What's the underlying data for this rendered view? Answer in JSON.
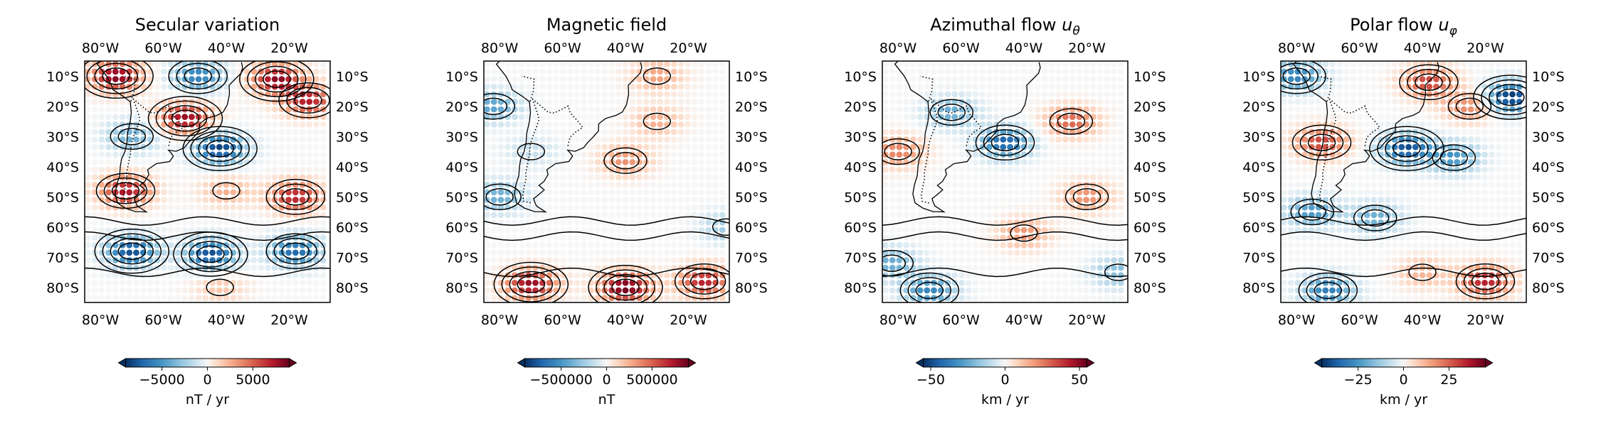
{
  "chart_data": [
    {
      "type": "heatmap",
      "title": "Secular variation",
      "title_var": "",
      "x_ticks": [
        "80°W",
        "60°W",
        "40°W",
        "20°W"
      ],
      "x_tick_values": [
        -80,
        -60,
        -40,
        -20
      ],
      "y_ticks": [
        "10°S",
        "20°S",
        "30°S",
        "40°S",
        "50°S",
        "60°S",
        "70°S",
        "80°S"
      ],
      "y_tick_values": [
        -10,
        -20,
        -30,
        -40,
        -50,
        -60,
        -70,
        -80
      ],
      "xlim": [
        -85,
        -7
      ],
      "ylim": [
        -85,
        -5
      ],
      "colorbar": {
        "ticks": [
          "−5000",
          "0",
          "5000"
        ],
        "tick_values": [
          -5000,
          0,
          5000
        ],
        "range": [
          -9000,
          9000
        ],
        "label": "nT / yr"
      },
      "features": [
        {
          "lon": -75,
          "lat": -10,
          "value": 8500
        },
        {
          "lon": -53,
          "lat": -24,
          "value": 8000
        },
        {
          "lon": -49,
          "lat": -10,
          "value": -6000
        },
        {
          "lon": -24,
          "lat": -11,
          "value": 8000
        },
        {
          "lon": -14,
          "lat": -18,
          "value": 7000
        },
        {
          "lon": -70,
          "lat": -30,
          "value": -4000
        },
        {
          "lon": -42,
          "lat": -34,
          "value": -8500
        },
        {
          "lon": -72,
          "lat": -48,
          "value": 7500
        },
        {
          "lon": -18,
          "lat": -50,
          "value": 7000
        },
        {
          "lon": -40,
          "lat": -48,
          "value": 2500
        },
        {
          "lon": -45,
          "lat": -69,
          "value": -8000
        },
        {
          "lon": -70,
          "lat": -68,
          "value": -8000
        },
        {
          "lon": -18,
          "lat": -68,
          "value": -7000
        },
        {
          "lon": -42,
          "lat": -80,
          "value": 1800
        }
      ]
    },
    {
      "type": "heatmap",
      "title": "Magnetic field",
      "title_var": "",
      "x_ticks": [
        "80°W",
        "60°W",
        "40°W",
        "20°W"
      ],
      "x_tick_values": [
        -80,
        -60,
        -40,
        -20
      ],
      "y_ticks": [
        "10°S",
        "20°S",
        "30°S",
        "40°S",
        "50°S",
        "60°S",
        "70°S",
        "80°S"
      ],
      "y_tick_values": [
        -10,
        -20,
        -30,
        -40,
        -50,
        -60,
        -70,
        -80
      ],
      "xlim": [
        -85,
        -7
      ],
      "ylim": [
        -85,
        -5
      ],
      "colorbar": {
        "ticks": [
          "−500000",
          "0",
          "500000"
        ],
        "tick_values": [
          -500000,
          0,
          500000
        ],
        "range": [
          -900000,
          900000
        ],
        "label": "nT"
      },
      "features": [
        {
          "lon": -82,
          "lat": -20,
          "value": -450000
        },
        {
          "lon": -80,
          "lat": -50,
          "value": -400000
        },
        {
          "lon": -70,
          "lat": -35,
          "value": -150000
        },
        {
          "lon": -8,
          "lat": -60,
          "value": -250000
        },
        {
          "lon": -40,
          "lat": -38,
          "value": 350000
        },
        {
          "lon": -30,
          "lat": -25,
          "value": 250000
        },
        {
          "lon": -30,
          "lat": -10,
          "value": 300000
        },
        {
          "lon": -40,
          "lat": -80,
          "value": 900000
        },
        {
          "lon": -70,
          "lat": -79,
          "value": 800000
        },
        {
          "lon": -15,
          "lat": -78,
          "value": 700000
        }
      ]
    },
    {
      "type": "heatmap",
      "title": "Azimuthal flow",
      "title_var": "u_θ",
      "x_ticks": [
        "80°W",
        "60°W",
        "40°W",
        "20°W"
      ],
      "x_tick_values": [
        -80,
        -60,
        -40,
        -20
      ],
      "y_ticks": [
        "10°S",
        "20°S",
        "30°S",
        "40°S",
        "50°S",
        "60°S",
        "70°S",
        "80°S"
      ],
      "y_tick_values": [
        -10,
        -20,
        -30,
        -40,
        -50,
        -60,
        -70,
        -80
      ],
      "xlim": [
        -85,
        -7
      ],
      "ylim": [
        -85,
        -5
      ],
      "colorbar": {
        "ticks": [
          "−50",
          "0",
          "50"
        ],
        "tick_values": [
          -50,
          0,
          50
        ],
        "range": [
          -55,
          55
        ],
        "label": "km / yr"
      },
      "features": [
        {
          "lon": -46,
          "lat": -32,
          "value": -45
        },
        {
          "lon": -63,
          "lat": -22,
          "value": -25
        },
        {
          "lon": -80,
          "lat": -35,
          "value": 25
        },
        {
          "lon": -25,
          "lat": -25,
          "value": 30
        },
        {
          "lon": -20,
          "lat": -50,
          "value": 22
        },
        {
          "lon": -40,
          "lat": -62,
          "value": 20
        },
        {
          "lon": -82,
          "lat": -72,
          "value": -25
        },
        {
          "lon": -70,
          "lat": -81,
          "value": -35
        },
        {
          "lon": -10,
          "lat": -75,
          "value": -20
        }
      ]
    },
    {
      "type": "heatmap",
      "title": "Polar flow",
      "title_var": "u_φ",
      "x_ticks": [
        "80°W",
        "60°W",
        "40°W",
        "20°W"
      ],
      "x_tick_values": [
        -80,
        -60,
        -40,
        -20
      ],
      "y_ticks": [
        "10°S",
        "20°S",
        "30°S",
        "40°S",
        "50°S",
        "60°S",
        "70°S",
        "80°S"
      ],
      "y_tick_values": [
        -10,
        -20,
        -30,
        -40,
        -50,
        -60,
        -70,
        -80
      ],
      "xlim": [
        -85,
        -7
      ],
      "ylim": [
        -85,
        -5
      ],
      "colorbar": {
        "ticks": [
          "−25",
          "0",
          "25"
        ],
        "tick_values": [
          -25,
          0,
          25
        ],
        "range": [
          -45,
          45
        ],
        "label": "km / yr"
      },
      "features": [
        {
          "lon": -80,
          "lat": -10,
          "value": -30
        },
        {
          "lon": -45,
          "lat": -34,
          "value": -40
        },
        {
          "lon": -30,
          "lat": -37,
          "value": -25
        },
        {
          "lon": -12,
          "lat": -17,
          "value": -45
        },
        {
          "lon": -38,
          "lat": -12,
          "value": 30
        },
        {
          "lon": -72,
          "lat": -32,
          "value": 30
        },
        {
          "lon": -25,
          "lat": -20,
          "value": 20
        },
        {
          "lon": -75,
          "lat": -55,
          "value": -25
        },
        {
          "lon": -55,
          "lat": -57,
          "value": -20
        },
        {
          "lon": -20,
          "lat": -78,
          "value": 35
        },
        {
          "lon": -70,
          "lat": -81,
          "value": -30
        },
        {
          "lon": -40,
          "lat": -75,
          "value": 12
        }
      ]
    }
  ]
}
